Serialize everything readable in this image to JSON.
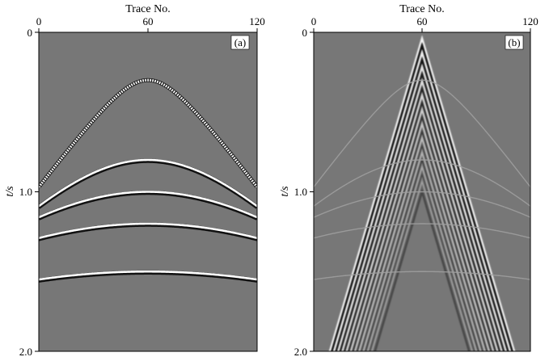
{
  "chart_data": [
    {
      "type": "heatmap",
      "panel_label": "(a)",
      "xlabel": "Trace No.",
      "ylabel": "t/s",
      "xlim": [
        0,
        120
      ],
      "ylim": [
        0,
        2.0
      ],
      "y_inverted": true,
      "x_ticks": [
        "0",
        "60",
        "120"
      ],
      "y_ticks": [
        "0",
        "1.0",
        "2.0"
      ],
      "background_color": "#777777",
      "events": [
        {
          "apex_trace": 60,
          "t0": 0.3,
          "t_edge": 0.97,
          "style": "dotted"
        },
        {
          "apex_trace": 60,
          "t0": 0.8,
          "t_edge": 1.09,
          "style": "solid"
        },
        {
          "apex_trace": 60,
          "t0": 1.0,
          "t_edge": 1.16,
          "style": "solid"
        },
        {
          "apex_trace": 60,
          "t0": 1.2,
          "t_edge": 1.29,
          "style": "solid"
        },
        {
          "apex_trace": 60,
          "t0": 1.5,
          "t_edge": 1.55,
          "style": "solid"
        }
      ]
    },
    {
      "type": "heatmap",
      "panel_label": "(b)",
      "xlabel": "Trace No.",
      "ylabel": "t/s",
      "xlim": [
        0,
        120
      ],
      "ylim": [
        0,
        2.0
      ],
      "y_inverted": true,
      "x_ticks": [
        "0",
        "60",
        "120"
      ],
      "y_ticks": [
        "0",
        "1.0",
        "2.0"
      ],
      "background_color": "#777777",
      "events": [
        {
          "apex_trace": 60,
          "t0": 0.3,
          "t_edge": 0.97,
          "style": "faint"
        },
        {
          "apex_trace": 60,
          "t0": 0.8,
          "t_edge": 1.09,
          "style": "faint"
        },
        {
          "apex_trace": 60,
          "t0": 1.0,
          "t_edge": 1.16,
          "style": "faint"
        },
        {
          "apex_trace": 60,
          "t0": 1.2,
          "t_edge": 1.29,
          "style": "faint"
        },
        {
          "apex_trace": 60,
          "t0": 1.5,
          "t_edge": 1.55,
          "style": "faint"
        }
      ],
      "noise_fan": {
        "apex_trace": 60,
        "apex_t": 0.04,
        "left_trace_at_bottom": 9,
        "right_trace_at_bottom": 111,
        "stripe_count": 11,
        "stripe_spacing_t": 0.09
      }
    }
  ]
}
